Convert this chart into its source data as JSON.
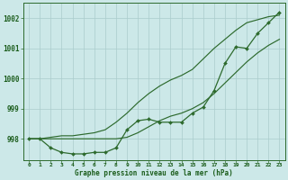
{
  "xlabel": "Graphe pression niveau de la mer (hPa)",
  "x": [
    0,
    1,
    2,
    3,
    4,
    5,
    6,
    7,
    8,
    9,
    10,
    11,
    12,
    13,
    14,
    15,
    16,
    17,
    18,
    19,
    20,
    21,
    22,
    23
  ],
  "line_actual": [
    998.0,
    998.0,
    997.7,
    997.55,
    997.5,
    997.5,
    997.55,
    997.55,
    997.7,
    998.3,
    998.6,
    998.65,
    998.55,
    998.55,
    998.55,
    998.85,
    999.05,
    999.6,
    1000.5,
    1001.05,
    1001.0,
    1001.5,
    1001.85,
    1002.2
  ],
  "line_upper": [
    998.0,
    998.0,
    998.05,
    998.1,
    998.1,
    998.15,
    998.2,
    998.3,
    998.55,
    998.85,
    999.2,
    999.5,
    999.75,
    999.95,
    1000.1,
    1000.3,
    1000.65,
    1001.0,
    1001.3,
    1001.6,
    1001.85,
    1001.95,
    1002.05,
    1002.1
  ],
  "line_lower": [
    998.0,
    998.0,
    998.0,
    998.0,
    998.0,
    998.0,
    998.0,
    998.0,
    998.0,
    998.05,
    998.2,
    998.4,
    998.6,
    998.75,
    998.85,
    999.0,
    999.2,
    999.5,
    999.85,
    1000.2,
    1000.55,
    1000.85,
    1001.1,
    1001.3
  ],
  "ylim_min": 997.3,
  "ylim_max": 1002.5,
  "yticks": [
    998,
    999,
    1000,
    1001,
    1002
  ],
  "line_color": "#2d6a2d",
  "bg_color": "#cce8e8",
  "grid_color": "#aacccc",
  "text_color": "#1a5c1a"
}
